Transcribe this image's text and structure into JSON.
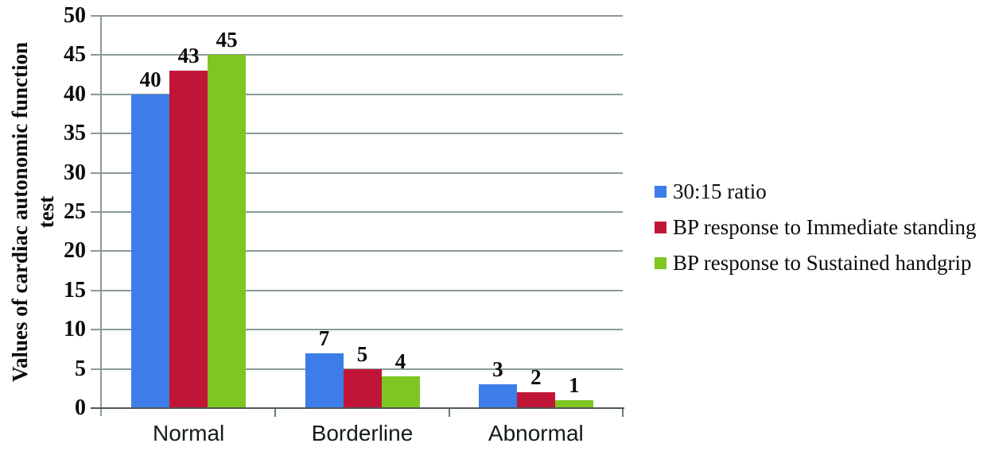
{
  "figure": {
    "background": "#ffffff"
  },
  "chart_data": {
    "type": "bar",
    "title": "",
    "xlabel": "",
    "ylabel": "Values of cardiac autonomic function test",
    "ylabel_lines": [
      "Values of cardiac autonomic function",
      "test"
    ],
    "categories": [
      "Normal",
      "Borderline",
      "Abnormal"
    ],
    "series": [
      {
        "name": "30:15 ratio",
        "color": "#3c7dea",
        "values": [
          40,
          7,
          3
        ]
      },
      {
        "name": "BP response to Immediate standing",
        "color": "#c11537",
        "values": [
          43,
          5,
          2
        ]
      },
      {
        "name": "BP response to Sustained handgrip",
        "color": "#7ec622",
        "values": [
          45,
          4,
          1
        ]
      }
    ],
    "ylim": [
      0,
      50
    ],
    "yticks": [
      0,
      5,
      10,
      15,
      20,
      25,
      30,
      35,
      40,
      45,
      50
    ],
    "grid": true,
    "data_labels": true,
    "legend_position": "right"
  },
  "colors": {
    "gridline": "#8b999a",
    "y_axis_line": "#8b999a",
    "x_axis_line": "#4e5958",
    "tick_text": "#0c0c0c",
    "category_text": "#141b1b"
  }
}
